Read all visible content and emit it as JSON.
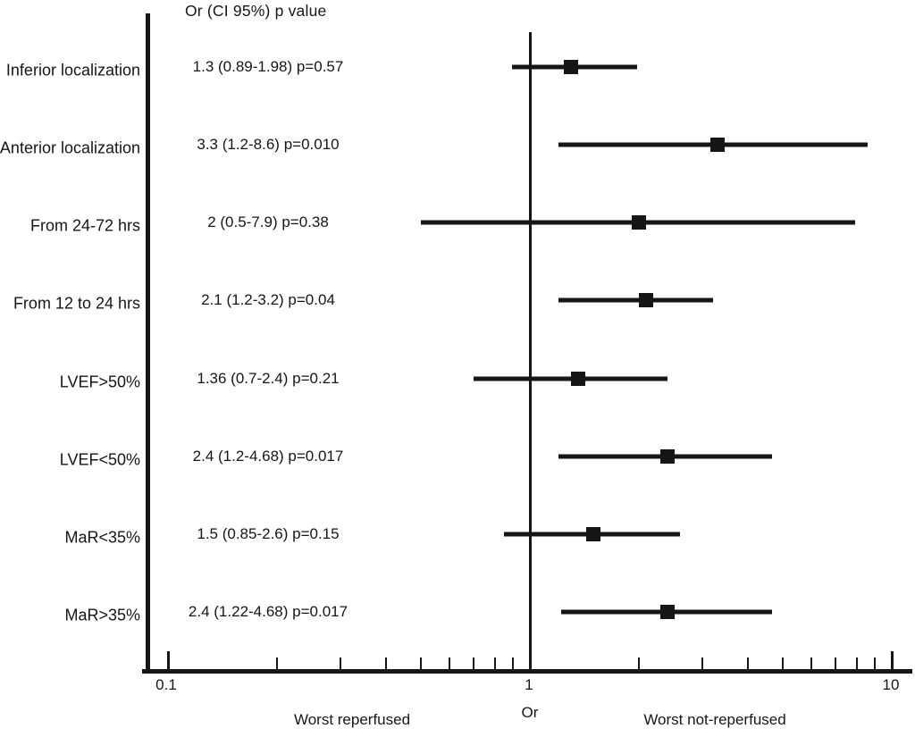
{
  "chart_data": {
    "type": "scatter",
    "variant": "forest-plot",
    "column_header": "Or (CI 95%) p value",
    "x_axis": {
      "scale": "log",
      "min": 0.1,
      "max": 10,
      "major_ticks": [
        0.1,
        1,
        10
      ],
      "major_tick_labels": [
        "0.1",
        "1",
        "10"
      ],
      "minor_ticks": [
        0.2,
        0.3,
        0.4,
        0.5,
        0.6,
        0.7,
        0.8,
        0.9,
        2,
        3,
        4,
        5,
        6,
        7,
        8,
        9
      ],
      "label": "Or",
      "reference_line": 1
    },
    "direction_labels": {
      "left": "Worst reperfused",
      "right": "Worst not-reperfused"
    },
    "rows": [
      {
        "label": "Inferior localization",
        "or": 1.3,
        "ci_low": 0.89,
        "ci_high": 1.98,
        "p": "0.57",
        "text": "1.3 (0.89-1.98) p=0.57"
      },
      {
        "label": "Anterior localization",
        "or": 3.3,
        "ci_low": 1.2,
        "ci_high": 8.6,
        "p": "0.010",
        "text": "3.3 (1.2-8.6) p=0.010"
      },
      {
        "label": "From 24-72 hrs",
        "or": 2,
        "ci_low": 0.5,
        "ci_high": 7.9,
        "p": "0.38",
        "text": "2 (0.5-7.9) p=0.38"
      },
      {
        "label": "From 12 to 24 hrs",
        "or": 2.1,
        "ci_low": 1.2,
        "ci_high": 3.2,
        "p": "0.04",
        "text": "2.1 (1.2-3.2) p=0.04"
      },
      {
        "label": "LVEF>50%",
        "or": 1.36,
        "ci_low": 0.7,
        "ci_high": 2.4,
        "p": "0.21",
        "text": "1.36 (0.7-2.4) p=0.21"
      },
      {
        "label": "LVEF<50%",
        "or": 2.4,
        "ci_low": 1.2,
        "ci_high": 4.68,
        "p": "0.017",
        "text": "2.4 (1.2-4.68) p=0.017"
      },
      {
        "label": "MaR<35%",
        "or": 1.5,
        "ci_low": 0.85,
        "ci_high": 2.6,
        "p": "0.15",
        "text": "1.5 (0.85-2.6) p=0.15"
      },
      {
        "label": "MaR>35%",
        "or": 2.4,
        "ci_low": 1.22,
        "ci_high": 4.68,
        "p": "0.017",
        "text": "2.4 (1.22-4.68) p=0.017"
      }
    ],
    "colors": {
      "ink": "#161616",
      "background": "#ffffff"
    }
  }
}
